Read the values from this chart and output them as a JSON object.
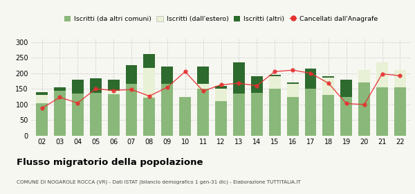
{
  "years": [
    "02",
    "03",
    "04",
    "05",
    "06",
    "07",
    "08",
    "09",
    "10",
    "11",
    "12",
    "13",
    "14",
    "15",
    "16",
    "17",
    "18",
    "19",
    "20",
    "21",
    "22"
  ],
  "iscritti_altri_comuni": [
    105,
    145,
    135,
    138,
    133,
    165,
    122,
    165,
    125,
    150,
    110,
    135,
    138,
    150,
    125,
    150,
    130,
    125,
    170,
    155,
    155
  ],
  "iscritti_estero": [
    25,
    0,
    0,
    0,
    12,
    0,
    95,
    0,
    0,
    17,
    40,
    0,
    0,
    40,
    40,
    0,
    55,
    0,
    40,
    80,
    55
  ],
  "iscritti_altri": [
    10,
    10,
    45,
    45,
    35,
    60,
    45,
    57,
    0,
    55,
    10,
    100,
    52,
    5,
    5,
    65,
    5,
    55,
    0,
    0,
    0
  ],
  "cancellati": [
    88,
    123,
    105,
    150,
    145,
    148,
    127,
    155,
    205,
    143,
    163,
    168,
    160,
    205,
    210,
    200,
    168,
    103,
    100,
    198,
    192
  ],
  "color_altri_comuni": "#8ab87a",
  "color_estero": "#e8f0d5",
  "color_altri": "#2d6a2d",
  "color_cancellati": "#e63030",
  "background_color": "#f7f7f2",
  "grid_color": "#d0d0d0",
  "ylim": [
    0,
    310
  ],
  "yticks": [
    0,
    50,
    100,
    150,
    200,
    250,
    300
  ],
  "title": "Flusso migratorio della popolazione",
  "subtitle": "COMUNE DI NOGAROLE ROCCA (VR) - Dati ISTAT (bilancio demografico 1 gen-31 dic) - Elaborazione TUTTITALIA.IT",
  "legend1": "Iscritti (da altri comuni)",
  "legend2": "Iscritti (dall'estero)",
  "legend3": "Iscritti (altri)",
  "legend4": "Cancellati dall'Anagrafe"
}
